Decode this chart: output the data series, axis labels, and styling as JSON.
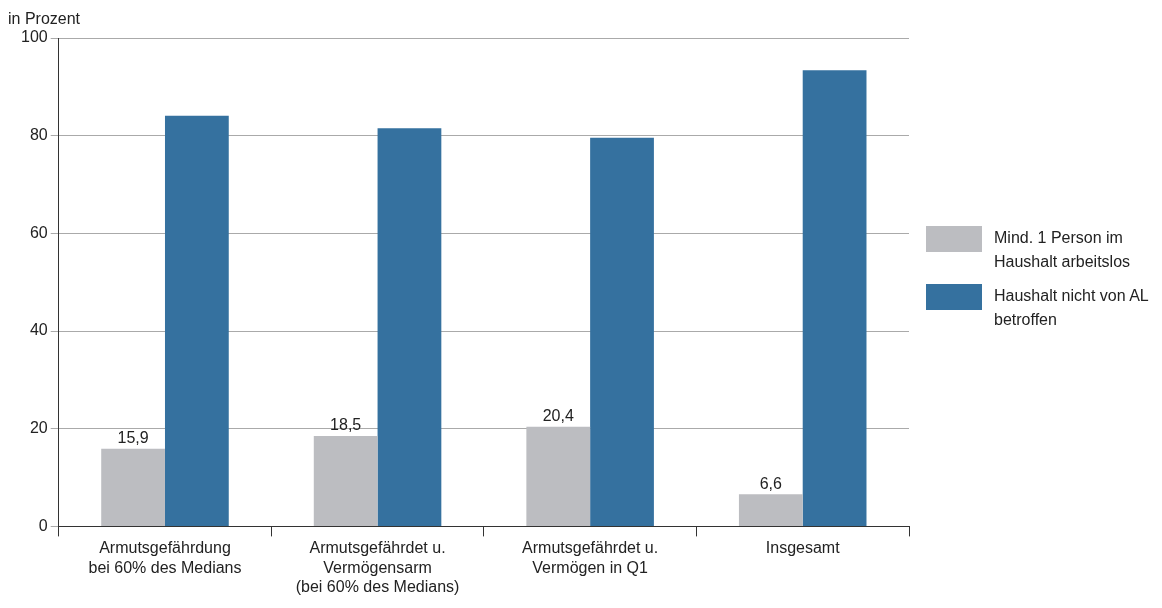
{
  "chart_data": {
    "type": "bar",
    "ylabel": "in Prozent",
    "categories": [
      "Armutsgefährdung\nbei 60% des Medians",
      "Armutsgefährdet u.\nVermögensarm\n(bei 60% des Medians)",
      "Armutsgefährdet u.\nVermögen in Q1",
      "Insgesamt"
    ],
    "series": [
      {
        "name": "Mind. 1 Person im Haushalt arbeitslos",
        "color": "#bcbdc1",
        "values": [
          15.9,
          18.5,
          20.4,
          6.6
        ],
        "value_labels": [
          "15,9",
          "18,5",
          "20,4",
          "6,6"
        ]
      },
      {
        "name": "Haushalt nicht von AL betroffen",
        "color": "#35719f",
        "values": [
          84.1,
          81.5,
          79.6,
          93.4
        ]
      }
    ],
    "ylim": [
      0,
      100
    ],
    "yticks": [
      0,
      20,
      40,
      60,
      80,
      100
    ],
    "grid": "y",
    "legend": "right"
  }
}
